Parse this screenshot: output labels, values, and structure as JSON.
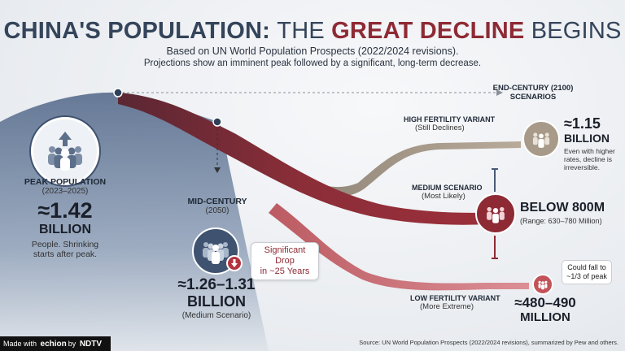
{
  "title": {
    "part1": "CHINA'S POPULATION:",
    "part2": "THE",
    "part3": "GREAT DECLINE",
    "part4": "BEGINS"
  },
  "subtitle": {
    "line1": "Based on UN World Population Prospects (2022/2024 revisions).",
    "line2": "Projections show an imminent peak followed by a significant, long-term decrease."
  },
  "peak": {
    "label": "PEAK POPULATION",
    "years": "(2023–2025)",
    "value": "≈1.42",
    "unit": "BILLION",
    "note_line1": "People. Shrinking",
    "note_line2": "starts after peak."
  },
  "mid_century": {
    "label": "MID-CENTURY",
    "year": "(2050)",
    "value": "≈1.26–1.31",
    "unit": "BILLION",
    "scenario": "(Medium Scenario)",
    "callout_line1": "Significant Drop",
    "callout_line2": "in ~25 Years"
  },
  "end_century": {
    "label": "END-CENTURY (2100)",
    "label2": "SCENARIOS"
  },
  "high": {
    "label": "HIGH FERTILITY VARIANT",
    "sub": "(Still Declines)",
    "value": "≈1.15",
    "unit": "BILLION",
    "note_line1": "Even with higher",
    "note_line2": "rates, decline is",
    "note_line3": "irreversible."
  },
  "medium": {
    "label": "MEDIUM SCENARIO",
    "sub": "(Most Likely)",
    "value": "BELOW 800M",
    "range": "(Range: 630–780 Million)"
  },
  "low": {
    "label": "LOW FERTILITY VARIANT",
    "sub": "(More Extreme)",
    "value": "≈480–490",
    "unit": "MILLION",
    "note_line1": "Could fall to",
    "note_line2": "~1/3 of peak"
  },
  "badge": {
    "made_with": "Made with",
    "brand": "echion",
    "by": "by",
    "partner": "NDTV"
  },
  "source": "Source: UN World Population Prospects (2022/2024 revisions), summarized by Pew and others.",
  "colors": {
    "navy": "#34445a",
    "red": "#8e2a34",
    "tan": "#a89a88",
    "crowd": "#5b6f8a"
  }
}
